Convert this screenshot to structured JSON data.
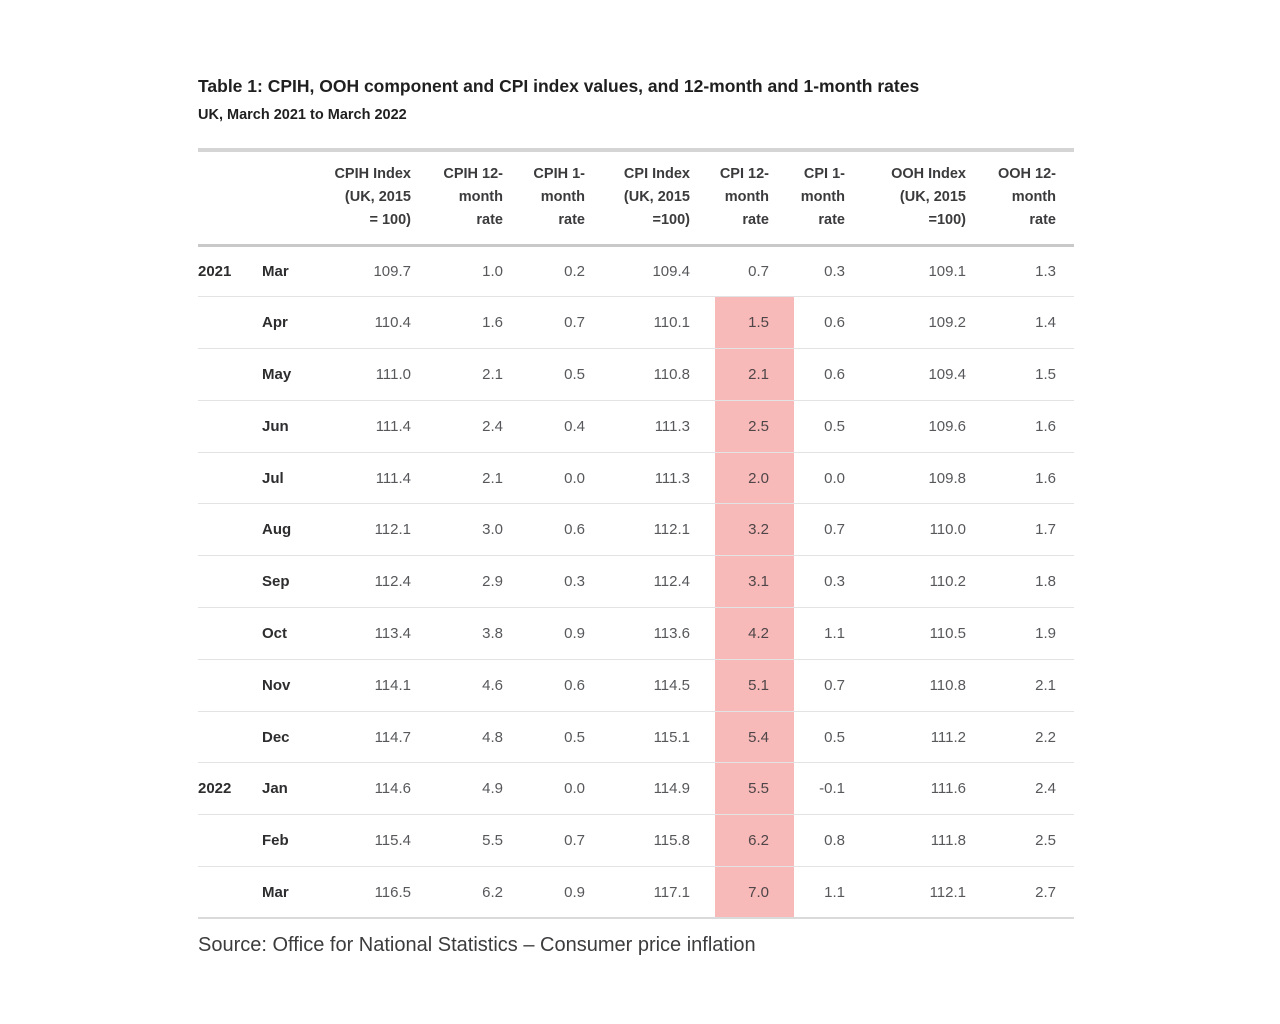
{
  "title": "Table 1: CPIH, OOH component and CPI index values, and 12-month and 1-month rates",
  "subtitle": "UK, March 2021 to March 2022",
  "source": "Source: Office for National Statistics – Consumer price inflation",
  "colors": {
    "highlight_pink": "#f8b9b9",
    "title_text": "#1f1f1f",
    "value_text": "#57585b",
    "rule_gray": "#d5d5d5"
  },
  "chart_data": {
    "type": "table",
    "title": "Table 1: CPIH, OOH component and CPI index values, and 12-month and 1-month rates",
    "subtitle": "UK, March 2021 to March 2022",
    "columns": [
      "",
      "",
      "CPIH Index\n(UK, 2015\n= 100)",
      "CPIH 12-\nmonth\nrate",
      "CPIH 1-\nmonth\nrate",
      "CPI Index\n(UK, 2015\n=100)",
      "CPI 12-\nmonth\nrate",
      "CPI 1-\nmonth\nrate",
      "OOH Index\n(UK, 2015\n=100)",
      "OOH 12-\nmonth\nrate"
    ],
    "highlighted_column": "CPI 12-month rate",
    "highlighted_rows": "Apr 2021 to Mar 2022",
    "rows": [
      {
        "year": "2021",
        "month": "Mar",
        "values": [
          "109.7",
          "1.0",
          "0.2",
          "109.4",
          "0.7",
          "0.3",
          "109.1",
          "1.3"
        ],
        "highlight": false
      },
      {
        "year": "",
        "month": "Apr",
        "values": [
          "110.4",
          "1.6",
          "0.7",
          "110.1",
          "1.5",
          "0.6",
          "109.2",
          "1.4"
        ],
        "highlight": true
      },
      {
        "year": "",
        "month": "May",
        "values": [
          "111.0",
          "2.1",
          "0.5",
          "110.8",
          "2.1",
          "0.6",
          "109.4",
          "1.5"
        ],
        "highlight": true
      },
      {
        "year": "",
        "month": "Jun",
        "values": [
          "111.4",
          "2.4",
          "0.4",
          "111.3",
          "2.5",
          "0.5",
          "109.6",
          "1.6"
        ],
        "highlight": true
      },
      {
        "year": "",
        "month": "Jul",
        "values": [
          "111.4",
          "2.1",
          "0.0",
          "111.3",
          "2.0",
          "0.0",
          "109.8",
          "1.6"
        ],
        "highlight": true
      },
      {
        "year": "",
        "month": "Aug",
        "values": [
          "112.1",
          "3.0",
          "0.6",
          "112.1",
          "3.2",
          "0.7",
          "110.0",
          "1.7"
        ],
        "highlight": true
      },
      {
        "year": "",
        "month": "Sep",
        "values": [
          "112.4",
          "2.9",
          "0.3",
          "112.4",
          "3.1",
          "0.3",
          "110.2",
          "1.8"
        ],
        "highlight": true
      },
      {
        "year": "",
        "month": "Oct",
        "values": [
          "113.4",
          "3.8",
          "0.9",
          "113.6",
          "4.2",
          "1.1",
          "110.5",
          "1.9"
        ],
        "highlight": true
      },
      {
        "year": "",
        "month": "Nov",
        "values": [
          "114.1",
          "4.6",
          "0.6",
          "114.5",
          "5.1",
          "0.7",
          "110.8",
          "2.1"
        ],
        "highlight": true
      },
      {
        "year": "",
        "month": "Dec",
        "values": [
          "114.7",
          "4.8",
          "0.5",
          "115.1",
          "5.4",
          "0.5",
          "111.2",
          "2.2"
        ],
        "highlight": true
      },
      {
        "year": "2022",
        "month": "Jan",
        "values": [
          "114.6",
          "4.9",
          "0.0",
          "114.9",
          "5.5",
          "-0.1",
          "111.6",
          "2.4"
        ],
        "highlight": true
      },
      {
        "year": "",
        "month": "Feb",
        "values": [
          "115.4",
          "5.5",
          "0.7",
          "115.8",
          "6.2",
          "0.8",
          "111.8",
          "2.5"
        ],
        "highlight": true
      },
      {
        "year": "",
        "month": "Mar",
        "values": [
          "116.5",
          "6.2",
          "0.9",
          "117.1",
          "7.0",
          "1.1",
          "112.1",
          "2.7"
        ],
        "highlight": true
      }
    ]
  }
}
